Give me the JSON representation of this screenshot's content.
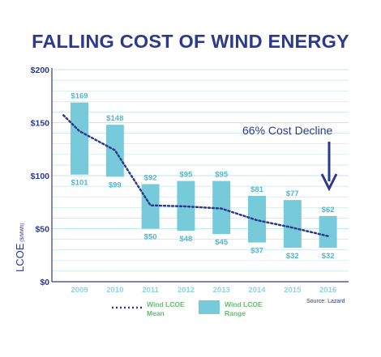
{
  "colors": {
    "title": "#2b3a8c",
    "bar": "#77cad9",
    "mean_line": "#2b3a8c",
    "grid": "#bfe7ef",
    "value_label": "#53b6c9",
    "legend_text": "#63bd6b",
    "x_tick": "#8fd3e1"
  },
  "chart_data": {
    "type": "bar",
    "title": "FALLING COST OF WIND ENERGY",
    "ylabel": "LCOE",
    "ylabel_unit": "($/MWh)",
    "categories": [
      "2009",
      "2010",
      "2011",
      "2012",
      "2013",
      "2014",
      "2015",
      "2016"
    ],
    "range": {
      "name": "Wind LCOE Range",
      "low": [
        101,
        99,
        50,
        48,
        45,
        37,
        32,
        32
      ],
      "high": [
        169,
        148,
        92,
        95,
        95,
        81,
        77,
        62
      ],
      "low_labels": [
        "$101",
        "$99",
        "$50",
        "$48",
        "$45",
        "$37",
        "$32",
        "$32"
      ],
      "high_labels": [
        "$169",
        "$148",
        "$92",
        "$95",
        "$95",
        "$81",
        "$77",
        "$62"
      ]
    },
    "mean": {
      "name": "Wind LCOE Mean",
      "x": [
        2008.55,
        2009,
        2010,
        2011,
        2012,
        2013,
        2014,
        2015,
        2016
      ],
      "values": [
        157,
        142,
        124,
        72,
        71,
        69,
        58,
        51,
        43
      ]
    },
    "ylim": [
      0,
      200
    ],
    "y_ticks": [
      0,
      50,
      100,
      150,
      200
    ],
    "y_tick_labels": [
      "$0",
      "$50",
      "$100",
      "$150",
      "$200"
    ],
    "grid": true,
    "legend_position": "bottom",
    "legend": {
      "mean_line1": "Wind LCOE",
      "mean_line2": "Mean",
      "range_line1": "Wind LCOE",
      "range_line2": "Range"
    },
    "annotation": "66% Cost Decline",
    "source": "Source:  Lazard"
  }
}
